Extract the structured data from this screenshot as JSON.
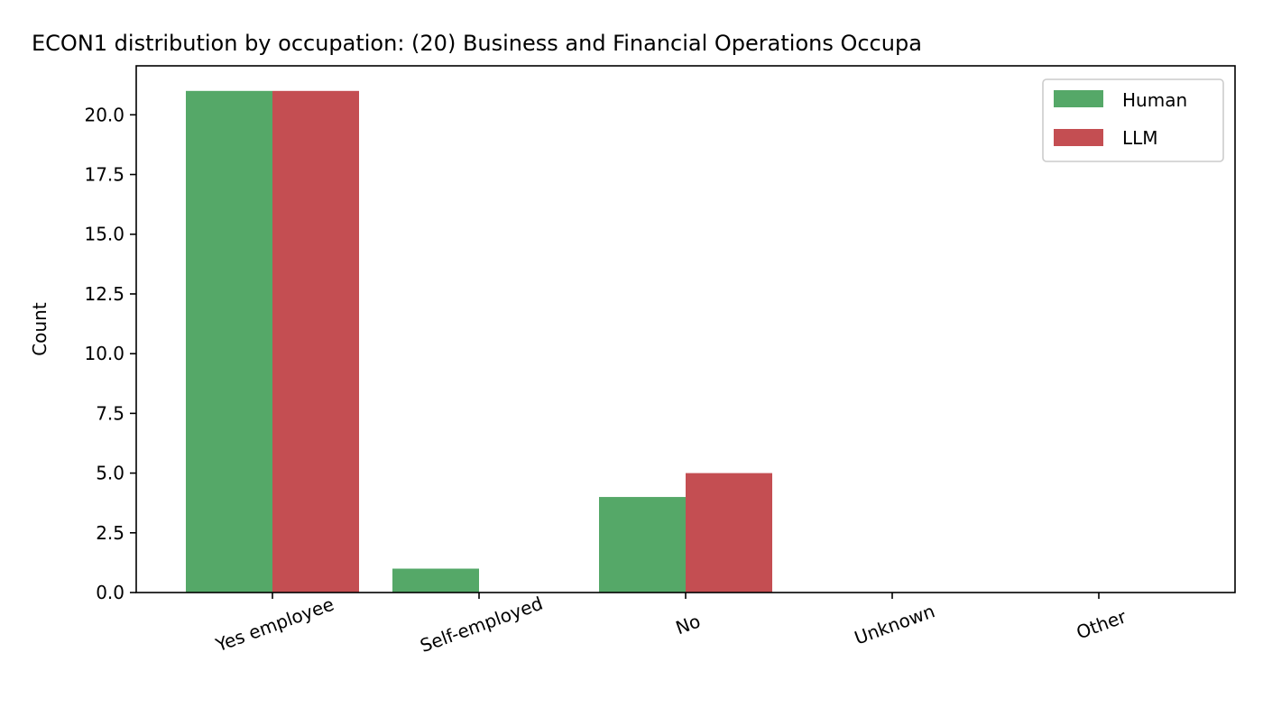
{
  "chart_data": {
    "type": "bar",
    "title": "ECON1 distribution by occupation: (20) Business and Financial Operations Occupa",
    "xlabel": "",
    "ylabel": "Count",
    "categories": [
      "Yes employee",
      "Self-employed",
      "No",
      "Unknown",
      "Other"
    ],
    "series": [
      {
        "name": "Human",
        "color": "#55a868",
        "values": [
          21,
          1,
          4,
          0,
          0
        ]
      },
      {
        "name": "LLM",
        "color": "#c44e52",
        "values": [
          21,
          0,
          5,
          0,
          0
        ]
      }
    ],
    "ylim": [
      0,
      22.05
    ],
    "yticks": [
      "0.0",
      "2.5",
      "5.0",
      "7.5",
      "10.0",
      "12.5",
      "15.0",
      "17.5",
      "20.0"
    ],
    "legend_position": "top-right",
    "grid": false
  }
}
